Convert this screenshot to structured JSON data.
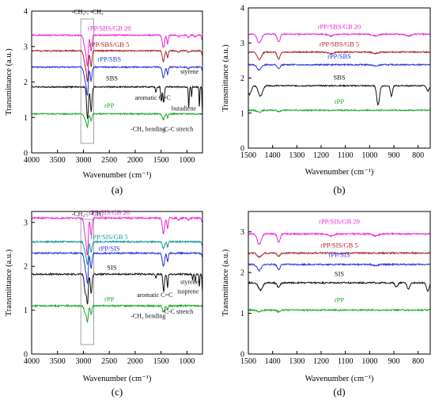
{
  "chart_data": [
    {
      "panel": "(a)",
      "type": "line",
      "xlabel": "Wavenumber (cm⁻¹)",
      "ylabel": "Transmittance (a.u.)",
      "xlim": [
        4000,
        700
      ],
      "ylim": [
        0,
        4
      ],
      "xticks": [
        4000,
        3500,
        3000,
        2500,
        2000,
        1500,
        1000
      ],
      "yticks": [
        0,
        1,
        2,
        3,
        4
      ],
      "highlight_box_x": [
        3050,
        2800
      ],
      "series": [
        {
          "name": "rPP/SBS/GB 20",
          "color": "#ee22dd",
          "baseline": 3.32,
          "label_at": [
            2500,
            3.45
          ],
          "peaks": [
            [
              2950,
              0.5,
              45
            ],
            [
              2920,
              0.55,
              20
            ],
            [
              2850,
              0.45,
              22
            ],
            [
              1455,
              0.35,
              30
            ],
            [
              1375,
              0.25,
              18
            ],
            [
              1160,
              0.05,
              25
            ],
            [
              970,
              0.06,
              25
            ],
            [
              840,
              0.05,
              20
            ],
            [
              700,
              0.15,
              20
            ]
          ]
        },
        {
          "name": "rPP/SBS/GB 5",
          "color": "#aa2222",
          "baseline": 2.88,
          "label_at": [
            2500,
            3.0
          ],
          "peaks": [
            [
              2950,
              0.5,
              45
            ],
            [
              2920,
              0.55,
              20
            ],
            [
              2850,
              0.45,
              22
            ],
            [
              1455,
              0.3,
              30
            ],
            [
              1375,
              0.2,
              18
            ],
            [
              1160,
              0.05,
              25
            ],
            [
              970,
              0.05,
              25
            ],
            [
              700,
              0.12,
              20
            ]
          ]
        },
        {
          "name": "rPP/SBS",
          "color": "#2233dd",
          "baseline": 2.42,
          "label_at": [
            2500,
            2.58
          ],
          "peaks": [
            [
              2950,
              0.45,
              45
            ],
            [
              2920,
              0.5,
              20
            ],
            [
              2850,
              0.4,
              22
            ],
            [
              1455,
              0.3,
              30
            ],
            [
              1375,
              0.2,
              18
            ],
            [
              970,
              0.04,
              25
            ],
            [
              700,
              0.1,
              20
            ]
          ]
        },
        {
          "name": "SBS",
          "color": "#111111",
          "baseline": 1.86,
          "label_at": [
            2450,
            2.05
          ],
          "peaks": [
            [
              2920,
              0.9,
              25
            ],
            [
              2850,
              0.7,
              22
            ],
            [
              1600,
              0.15,
              15
            ],
            [
              1495,
              0.4,
              15
            ],
            [
              1450,
              0.45,
              20
            ],
            [
              965,
              0.6,
              12
            ],
            [
              910,
              0.3,
              10
            ],
            [
              760,
              0.6,
              10
            ],
            [
              700,
              0.75,
              12
            ]
          ]
        },
        {
          "name": "rPP",
          "color": "#11aa22",
          "baseline": 1.1,
          "label_at": [
            2500,
            1.27
          ],
          "peaks": [
            [
              2950,
              0.2,
              40
            ],
            [
              2920,
              0.25,
              20
            ],
            [
              2850,
              0.2,
              22
            ],
            [
              1455,
              0.15,
              30
            ],
            [
              1375,
              0.1,
              18
            ]
          ]
        }
      ],
      "annotations": [
        {
          "text": "-CH₂-; -CH₃",
          "x": 2920,
          "y": 3.92
        },
        {
          "text": "styrene",
          "x": 950,
          "y": 2.24
        },
        {
          "text": "aromatic C=C",
          "x": 1660,
          "y": 1.5
        },
        {
          "text": "butadiene",
          "x": 1060,
          "y": 1.2
        },
        {
          "text": "-CH₃ bending",
          "x": 1750,
          "y": 0.62
        },
        {
          "text": "-C-C stretch",
          "x": 1180,
          "y": 0.62
        }
      ]
    },
    {
      "panel": "(b)",
      "type": "line",
      "xlabel": "Wavenumber (cm⁻¹)",
      "ylabel": "Transmittance (a.u.)",
      "xlim": [
        1500,
        750
      ],
      "ylim": [
        0,
        4
      ],
      "xticks": [
        1500,
        1400,
        1300,
        1200,
        1100,
        1000,
        900,
        800
      ],
      "yticks": [
        0,
        1,
        2,
        3,
        4
      ],
      "series": [
        {
          "name": "rPP/SBS/GB 20",
          "color": "#ee22dd",
          "baseline": 3.25,
          "label_at": [
            1125,
            3.4
          ],
          "peaks": [
            [
              1455,
              0.25,
              12
            ],
            [
              1375,
              0.22,
              8
            ],
            [
              1160,
              0.05,
              15
            ],
            [
              975,
              0.05,
              15
            ],
            [
              840,
              0.05,
              15
            ]
          ]
        },
        {
          "name": "rPP/SBS/GB 5",
          "color": "#aa2222",
          "baseline": 2.74,
          "label_at": [
            1125,
            2.9
          ],
          "peaks": [
            [
              1455,
              0.22,
              12
            ],
            [
              1375,
              0.2,
              8
            ],
            [
              1160,
              0.04,
              15
            ],
            [
              975,
              0.04,
              15
            ]
          ]
        },
        {
          "name": "rPP/SBS",
          "color": "#2233dd",
          "baseline": 2.38,
          "label_at": [
            1125,
            2.55
          ],
          "peaks": [
            [
              1455,
              0.15,
              12
            ],
            [
              1375,
              0.12,
              8
            ],
            [
              975,
              0.04,
              15
            ]
          ]
        },
        {
          "name": "SBS",
          "color": "#111111",
          "baseline": 1.78,
          "label_at": [
            1125,
            1.95
          ],
          "peaks": [
            [
              1495,
              0.25,
              10
            ],
            [
              1450,
              0.3,
              12
            ],
            [
              965,
              0.55,
              8
            ],
            [
              910,
              0.3,
              6
            ],
            [
              760,
              0.15,
              8
            ]
          ]
        },
        {
          "name": "rPP",
          "color": "#11aa22",
          "baseline": 1.08,
          "label_at": [
            1125,
            1.27
          ],
          "peaks": [
            [
              1455,
              0.05,
              12
            ],
            [
              1375,
              0.04,
              8
            ]
          ]
        }
      ]
    },
    {
      "panel": "(c)",
      "type": "line",
      "xlabel": "Wavenumber (cm⁻¹)",
      "ylabel": "Transmittance (a.u.)",
      "xlim": [
        4000,
        700
      ],
      "ylim": [
        0,
        3.25
      ],
      "xticks": [
        4000,
        3500,
        3000,
        2500,
        2000,
        1500,
        1000
      ],
      "yticks": [
        0,
        1,
        2,
        3
      ],
      "highlight_box_x": [
        3050,
        2800
      ],
      "series": [
        {
          "name": "rPP/SIS/GB 20",
          "color": "#ee22dd",
          "baseline": 3.1,
          "label_at": [
            2500,
            3.18
          ],
          "peaks": [
            [
              2950,
              0.5,
              40
            ],
            [
              2920,
              0.55,
              20
            ],
            [
              2850,
              0.4,
              22
            ],
            [
              1455,
              0.35,
              30
            ],
            [
              1375,
              0.25,
              18
            ],
            [
              1160,
              0.05,
              25
            ],
            [
              970,
              0.05,
              25
            ],
            [
              700,
              0.1,
              20
            ]
          ]
        },
        {
          "name": "rPP/SIS/GB 5",
          "color": "#119999",
          "baseline": 2.56,
          "label_at": [
            2500,
            2.62
          ],
          "peaks": [
            [
              2950,
              0.3,
              40
            ],
            [
              2920,
              0.35,
              20
            ],
            [
              2850,
              0.25,
              22
            ],
            [
              1455,
              0.15,
              30
            ],
            [
              1375,
              0.12,
              18
            ],
            [
              700,
              0.08,
              20
            ]
          ]
        },
        {
          "name": "rPP/SIS",
          "color": "#2233dd",
          "baseline": 2.3,
          "label_at": [
            2500,
            2.36
          ],
          "peaks": [
            [
              2950,
              0.4,
              40
            ],
            [
              2920,
              0.45,
              20
            ],
            [
              2850,
              0.35,
              22
            ],
            [
              1455,
              0.3,
              30
            ],
            [
              1375,
              0.2,
              18
            ],
            [
              700,
              0.08,
              20
            ]
          ]
        },
        {
          "name": "SIS",
          "color": "#111111",
          "baseline": 1.82,
          "label_at": [
            2450,
            1.92
          ],
          "peaks": [
            [
              2960,
              0.45,
              30
            ],
            [
              2920,
              0.6,
              20
            ],
            [
              2850,
              0.45,
              22
            ],
            [
              1450,
              0.4,
              20
            ],
            [
              1375,
              0.3,
              15
            ],
            [
              1600,
              0.1,
              15
            ],
            [
              890,
              0.15,
              10
            ],
            [
              840,
              0.2,
              10
            ],
            [
              760,
              0.3,
              10
            ],
            [
              700,
              0.4,
              12
            ]
          ]
        },
        {
          "name": "rPP",
          "color": "#11aa22",
          "baseline": 1.1,
          "label_at": [
            2500,
            1.2
          ],
          "peaks": [
            [
              2950,
              0.2,
              40
            ],
            [
              2920,
              0.25,
              20
            ],
            [
              2850,
              0.2,
              22
            ],
            [
              1455,
              0.12,
              30
            ],
            [
              1375,
              0.1,
              18
            ]
          ]
        }
      ],
      "annotations": [
        {
          "text": "-CH₂-; -CH₃",
          "x": 2920,
          "y": 3.15
        },
        {
          "text": "styrene",
          "x": 950,
          "y": 1.6
        },
        {
          "text": "isoprene",
          "x": 980,
          "y": 1.38
        },
        {
          "text": "aromatic C=C",
          "x": 1620,
          "y": 1.3
        },
        {
          "text": "-CH₃ bending",
          "x": 1750,
          "y": 0.82
        },
        {
          "text": "-C-C stretch",
          "x": 1180,
          "y": 0.92
        }
      ]
    },
    {
      "panel": "(d)",
      "type": "line",
      "xlabel": "Wavenumber (cm⁻¹)",
      "ylabel": "Transmittance (a.u.)",
      "xlim": [
        1500,
        750
      ],
      "ylim": [
        0,
        3.5
      ],
      "xticks": [
        1500,
        1400,
        1300,
        1200,
        1100,
        1000,
        900,
        800
      ],
      "yticks": [
        0,
        1,
        2,
        3
      ],
      "series": [
        {
          "name": "rPP/SIS/GB 20",
          "color": "#ee22dd",
          "baseline": 2.95,
          "label_at": [
            1125,
            3.2
          ],
          "peaks": [
            [
              1455,
              0.25,
              12
            ],
            [
              1375,
              0.2,
              8
            ],
            [
              1160,
              0.05,
              15
            ],
            [
              975,
              0.05,
              15
            ]
          ]
        },
        {
          "name": "rPP/SIS/GB 5",
          "color": "#aa2222",
          "baseline": 2.48,
          "label_at": [
            1125,
            2.62
          ],
          "peaks": [
            [
              1455,
              0.1,
              12
            ],
            [
              1375,
              0.08,
              8
            ]
          ]
        },
        {
          "name": "rPP/SIS",
          "color": "#2233dd",
          "baseline": 2.2,
          "label_at": [
            1125,
            2.38
          ],
          "peaks": [
            [
              1455,
              0.15,
              12
            ],
            [
              1375,
              0.12,
              8
            ],
            [
              975,
              0.03,
              15
            ]
          ]
        },
        {
          "name": "SIS",
          "color": "#111111",
          "baseline": 1.75,
          "label_at": [
            1125,
            1.92
          ],
          "peaks": [
            [
              1450,
              0.18,
              12
            ],
            [
              1375,
              0.12,
              8
            ],
            [
              890,
              0.1,
              8
            ],
            [
              840,
              0.15,
              8
            ],
            [
              760,
              0.2,
              8
            ]
          ]
        },
        {
          "name": "rPP",
          "color": "#11aa22",
          "baseline": 1.08,
          "label_at": [
            1125,
            1.27
          ],
          "peaks": [
            [
              1455,
              0.04,
              12
            ],
            [
              1375,
              0.04,
              8
            ]
          ]
        }
      ]
    }
  ]
}
